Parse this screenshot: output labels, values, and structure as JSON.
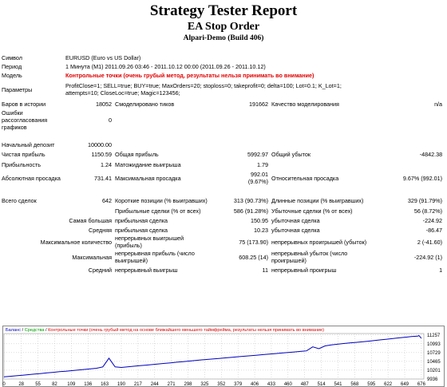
{
  "header": {
    "title": "Strategy Tester Report",
    "subtitle": "EA Stop Order",
    "server": "Alpari-Demo (Build 406)"
  },
  "info": {
    "symbol_label": "Символ",
    "symbol_value": "EURUSD (Euro vs US Dollar)",
    "period_label": "Период",
    "period_value": "1 Минута (M1) 2011.09.26 03:46 - 2011.10.12 00:00 (2011.09.26 - 2011.10.12)",
    "model_label": "Модель",
    "model_value": "Контрольные точки (очень грубый метод, результаты нельзя принимать во внимание)",
    "params_label": "Параметры",
    "params_line1": "ProfitClose=1; SELL=true; BUY=true; MaxOrders=20; stoploss=0; takeprofit=0; delta=100; Lot=0.1; K_Lot=1;",
    "params_line2": "attempts=10; CloseLoc=true; Magic=123456;"
  },
  "stats": {
    "bars_label": "Баров в истории",
    "bars_value": "18052",
    "ticks_label": "Смоделировано тиков",
    "ticks_value": "191662",
    "quality_label": "Качество моделирования",
    "quality_value": "n/a",
    "errors_label1": "Ошибки рассогласования",
    "errors_label2": "графиков",
    "errors_value": "0",
    "deposit_label": "Начальный депозит",
    "deposit_value": "10000.00",
    "netprofit_label": "Чистая прибыль",
    "netprofit_value": "1150.59",
    "grossprofit_label": "Общая прибыль",
    "grossprofit_value": "5992.97",
    "grossloss_label": "Общий убыток",
    "grossloss_value": "-4842.38",
    "pf_label": "Прибыльность",
    "pf_value": "1.24",
    "payoff_label": "Матожидание выигрыша",
    "payoff_value": "1.79",
    "absdd_label": "Абсолютная просадка",
    "absdd_value": "731.41",
    "maxdd_label": "Максимальная просадка",
    "maxdd_value1": "992.01",
    "maxdd_value2": "(9.67%)",
    "reldd_label": "Относительная просадка",
    "reldd_value": "9.67% (992.01)",
    "trades_label": "Всего сделок",
    "trades_value": "642",
    "short_label": "Короткие позиции (% выигравших)",
    "short_value": "313 (90.73%)",
    "long_label": "Длинные позиции (% выигравших)",
    "long_value": "329 (91.79%)",
    "profittrades_label": "Прибыльные сделки (% от всех)",
    "profittrades_value": "586 (91.28%)",
    "losstrades_label": "Убыточные сделки (% от всех)",
    "losstrades_value": "56 (8.72%)",
    "largest_label": "Самая большая",
    "largest_profit_label": "прибыльная сделка",
    "largest_profit_value": "150.95",
    "largest_loss_label": "убыточная сделка",
    "largest_loss_value": "-224.92",
    "avg_label": "Средняя",
    "avg_profit_label": "прибыльная сделка",
    "avg_profit_value": "10.23",
    "avg_loss_label": "убыточная сделка",
    "avg_loss_value": "-86.47",
    "maxcount_label": "Максимальное количество",
    "maxcons_wins_label": "непрерывных выигрышей (прибыль)",
    "maxcons_wins_value": "75 (173.90)",
    "maxcons_loss_label": "непрерывных проигрышей (убыток)",
    "maxcons_loss_value": "2 (-41.60)",
    "maximal_label": "Максимальная",
    "maximal_profit_label1": "непрерывная прибыль (число",
    "maximal_profit_label2": "выигрышей)",
    "maximal_profit_value": "608.25 (14)",
    "maximal_loss_label1": "непрерывный убыток (число",
    "maximal_loss_label2": "проигрышей)",
    "maximal_loss_value": "-224.92 (1)",
    "average_label": "Средний",
    "avg_cons_wins_label": "непрерывный выигрыш",
    "avg_cons_wins_value": "11",
    "avg_cons_loss_label": "непрерывный проигрыш",
    "avg_cons_loss_value": "1"
  },
  "chart_data": {
    "type": "line",
    "legend": [
      "Баланс",
      "Средства",
      "Контрольные точки (очень грубый метод на основе ближайшего меньшего таймфрейма, результаты нельзя принимать во внимание)"
    ],
    "legend_seps": [
      "/",
      "/"
    ],
    "legend_colors": [
      "#0000c0",
      "#00a000",
      "#e00000"
    ],
    "series_color": "#0000c0",
    "grid": true,
    "ylim": [
      9936,
      11300
    ],
    "yticks": [
      11257,
      10993,
      10729,
      10465,
      10201,
      9936
    ],
    "xticks": [
      "0",
      "28",
      "55",
      "82",
      "109",
      "136",
      "163",
      "190",
      "217",
      "244",
      "271",
      "298",
      "325",
      "352",
      "379",
      "406",
      "433",
      "460",
      "487",
      "514",
      "541",
      "568",
      "595",
      "622",
      "649",
      "676"
    ],
    "xlim": [
      0,
      680
    ],
    "x": [
      0,
      10,
      20,
      30,
      40,
      50,
      60,
      70,
      80,
      90,
      100,
      110,
      120,
      130,
      140,
      150,
      160,
      170,
      180,
      190,
      200,
      210,
      220,
      230,
      240,
      250,
      260,
      270,
      280,
      290,
      300,
      310,
      320,
      330,
      340,
      350,
      360,
      370,
      380,
      390,
      400,
      410,
      420,
      430,
      440,
      450,
      460,
      470,
      480,
      490,
      500,
      510,
      520,
      530,
      540,
      550,
      560,
      570,
      580,
      590,
      600,
      610,
      620,
      630,
      640,
      650,
      660,
      670,
      672,
      676
    ],
    "y": [
      10000,
      10018,
      10035,
      10052,
      10068,
      10085,
      10102,
      10120,
      10138,
      10155,
      10170,
      10188,
      10205,
      10222,
      10240,
      10258,
      10300,
      10560,
      10300,
      10282,
      10300,
      10318,
      10336,
      10352,
      10370,
      10388,
      10405,
      10422,
      10440,
      10458,
      10475,
      10492,
      10510,
      10525,
      10540,
      10555,
      10572,
      10590,
      10606,
      10620,
      10636,
      10652,
      10668,
      10684,
      10700,
      10716,
      10732,
      10748,
      10764,
      10780,
      10900,
      10845,
      10930,
      10960,
      10980,
      11000,
      11018,
      11034,
      11050,
      11070,
      11090,
      11110,
      11130,
      11150,
      11170,
      11190,
      11210,
      11220,
      11240,
      11160
    ]
  }
}
